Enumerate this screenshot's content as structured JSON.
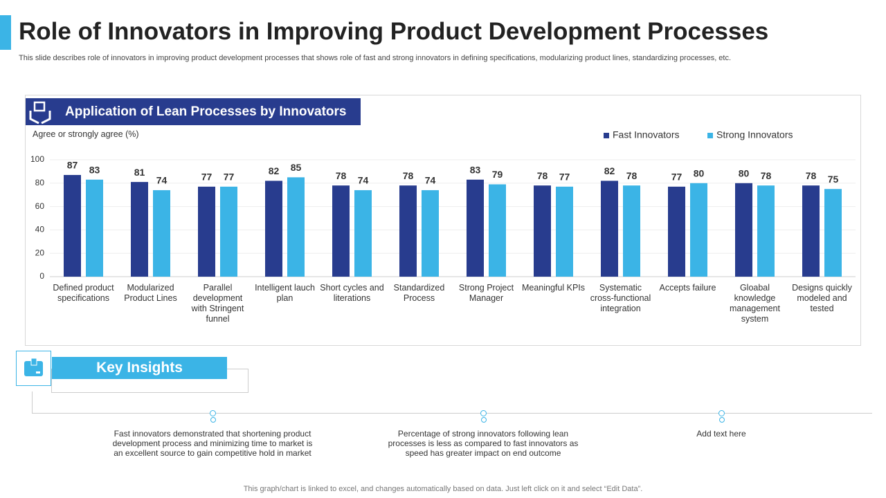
{
  "header": {
    "title": "Role of Innovators in Improving Product Development Processes",
    "subtitle": "This slide describes role of innovators in improving product development processes that shows role of fast and strong innovators in defining specifications, modularizing product lines, standardizing processes, etc."
  },
  "chart_data": {
    "type": "bar",
    "title": "Application of Lean Processes by Innovators",
    "y_label": "Agree or strongly agree (%)",
    "categories": [
      "Defined product specifications",
      "Modularized Product Lines",
      "Parallel development with Stringent funnel",
      "Intelligent lauch plan",
      "Short cycles and literations",
      "Standardized Process",
      "Strong Project Manager",
      "Meaningful KPIs",
      "Systematic cross-functional integration",
      "Accepts failure",
      "Gloabal knowledge management system",
      "Designs quickly modeled and tested"
    ],
    "series": [
      {
        "name": "Fast Innovators",
        "color": "#283c8e",
        "values": [
          87,
          81,
          77,
          82,
          78,
          78,
          83,
          78,
          82,
          77,
          80,
          78
        ]
      },
      {
        "name": "Strong Innovators",
        "color": "#3bb4e6",
        "values": [
          83,
          74,
          77,
          85,
          74,
          74,
          79,
          77,
          78,
          80,
          78,
          75
        ]
      }
    ],
    "ylim": [
      0,
      100
    ],
    "yticks": [
      0,
      20,
      40,
      60,
      80,
      100
    ],
    "grid": true,
    "legend": "top-right"
  },
  "insights": {
    "title": "Key Insights",
    "items": [
      "Fast innovators demonstrated that shortening product development process and minimizing time to market is an excellent source to gain competitive hold in market",
      "Percentage of strong innovators following lean processes is less as compared to fast innovators as speed has greater impact on end outcome",
      "Add text here"
    ]
  },
  "footer": "This graph/chart is linked to excel,  and changes automatically based on data. Just left click on it and select “Edit Data”."
}
